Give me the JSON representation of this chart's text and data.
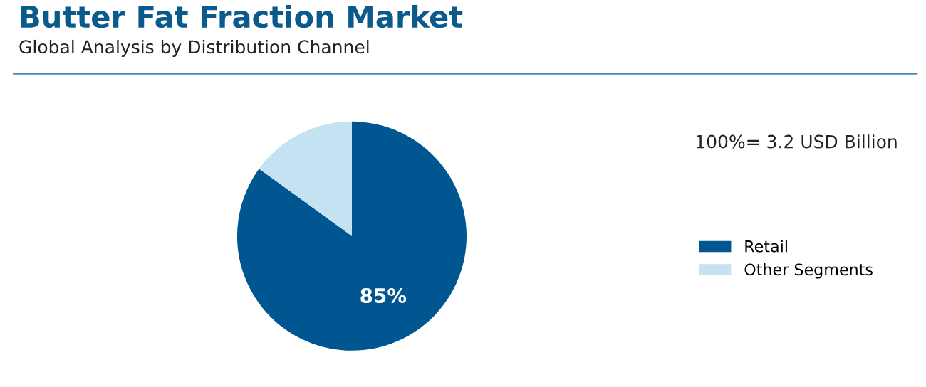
{
  "chart_data": {
    "type": "pie",
    "title": "Butter Fat Fraction Market",
    "subtitle": "Global Analysis by Distribution Channel",
    "categories": [
      "Retail",
      "Other Segments"
    ],
    "values": [
      85,
      15
    ],
    "colors": [
      "#005691",
      "#c5e2f3"
    ],
    "value_labels": [
      "85%",
      null
    ],
    "annotations": [
      "100%= 3.2 USD Billion"
    ],
    "legend": "right"
  }
}
